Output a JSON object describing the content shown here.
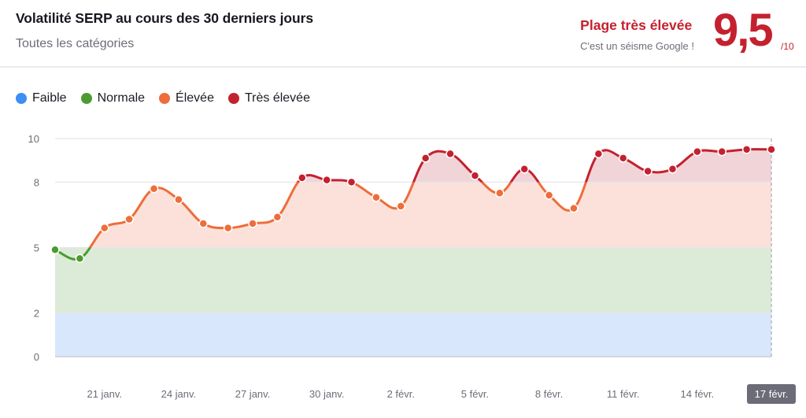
{
  "header": {
    "title": "Volatilité SERP au cours des 30 derniers jours",
    "subtitle": "Toutes les catégories",
    "range_title": "Plage très élevée",
    "range_desc": "C'est un séisme Google !",
    "score": "9,5",
    "score_max": "/10"
  },
  "legend": [
    {
      "label": "Faible",
      "color": "#3d8ef5"
    },
    {
      "label": "Normale",
      "color": "#4c9b2f"
    },
    {
      "label": "Élevée",
      "color": "#ee6d3a"
    },
    {
      "label": "Très élevée",
      "color": "#c4212f"
    }
  ],
  "colors": {
    "band_faible": "#d9e7fd",
    "band_normale": "#dcebd8",
    "band_elevee": "#fbe1d9",
    "band_tres_elevee": "#f1d4d8",
    "grid": "#e6e5ee",
    "tooltip_bg": "#6c6c78"
  },
  "chart_data": {
    "type": "line",
    "title": "Volatilité SERP au cours des 30 derniers jours",
    "subtitle": "Toutes les catégories",
    "xlabel": "",
    "ylabel": "",
    "ylim": [
      0,
      10
    ],
    "yticks": [
      0,
      2,
      5,
      8,
      10
    ],
    "bands": [
      {
        "name": "Faible",
        "from": 0,
        "to": 2,
        "color": "#3d8ef5"
      },
      {
        "name": "Normale",
        "from": 2,
        "to": 5,
        "color": "#4c9b2f"
      },
      {
        "name": "Élevée",
        "from": 5,
        "to": 8,
        "color": "#ee6d3a"
      },
      {
        "name": "Très élevée",
        "from": 8,
        "to": 10,
        "color": "#c4212f"
      }
    ],
    "x": [
      "19 janv.",
      "20 janv.",
      "21 janv.",
      "22 janv.",
      "23 janv.",
      "24 janv.",
      "25 janv.",
      "26 janv.",
      "27 janv.",
      "28 janv.",
      "29 janv.",
      "30 janv.",
      "31 janv.",
      "1 févr.",
      "2 févr.",
      "3 févr.",
      "4 févr.",
      "5 févr.",
      "6 févr.",
      "7 févr.",
      "8 févr.",
      "9 févr.",
      "10 févr.",
      "11 févr.",
      "12 févr.",
      "13 févr.",
      "14 févr.",
      "15 févr.",
      "16 févr.",
      "17 févr."
    ],
    "xtick_labels": [
      "21 janv.",
      "24 janv.",
      "27 janv.",
      "30 janv.",
      "2 févr.",
      "5 févr.",
      "8 févr.",
      "11 févr.",
      "14 févr.",
      "17 févr."
    ],
    "highlighted_x": "17 févr.",
    "series": [
      {
        "name": "Volatilité",
        "values": [
          4.9,
          4.5,
          5.9,
          6.3,
          7.7,
          7.2,
          6.1,
          5.9,
          6.1,
          6.4,
          8.2,
          8.1,
          8.0,
          7.3,
          6.9,
          9.1,
          9.3,
          8.3,
          7.5,
          8.6,
          7.4,
          6.8,
          9.3,
          9.1,
          8.5,
          8.6,
          9.4,
          9.4,
          9.5,
          9.5
        ]
      }
    ],
    "legend": [
      "Faible",
      "Normale",
      "Élevée",
      "Très élevée"
    ],
    "legend_position": "top-left",
    "grid": true
  }
}
